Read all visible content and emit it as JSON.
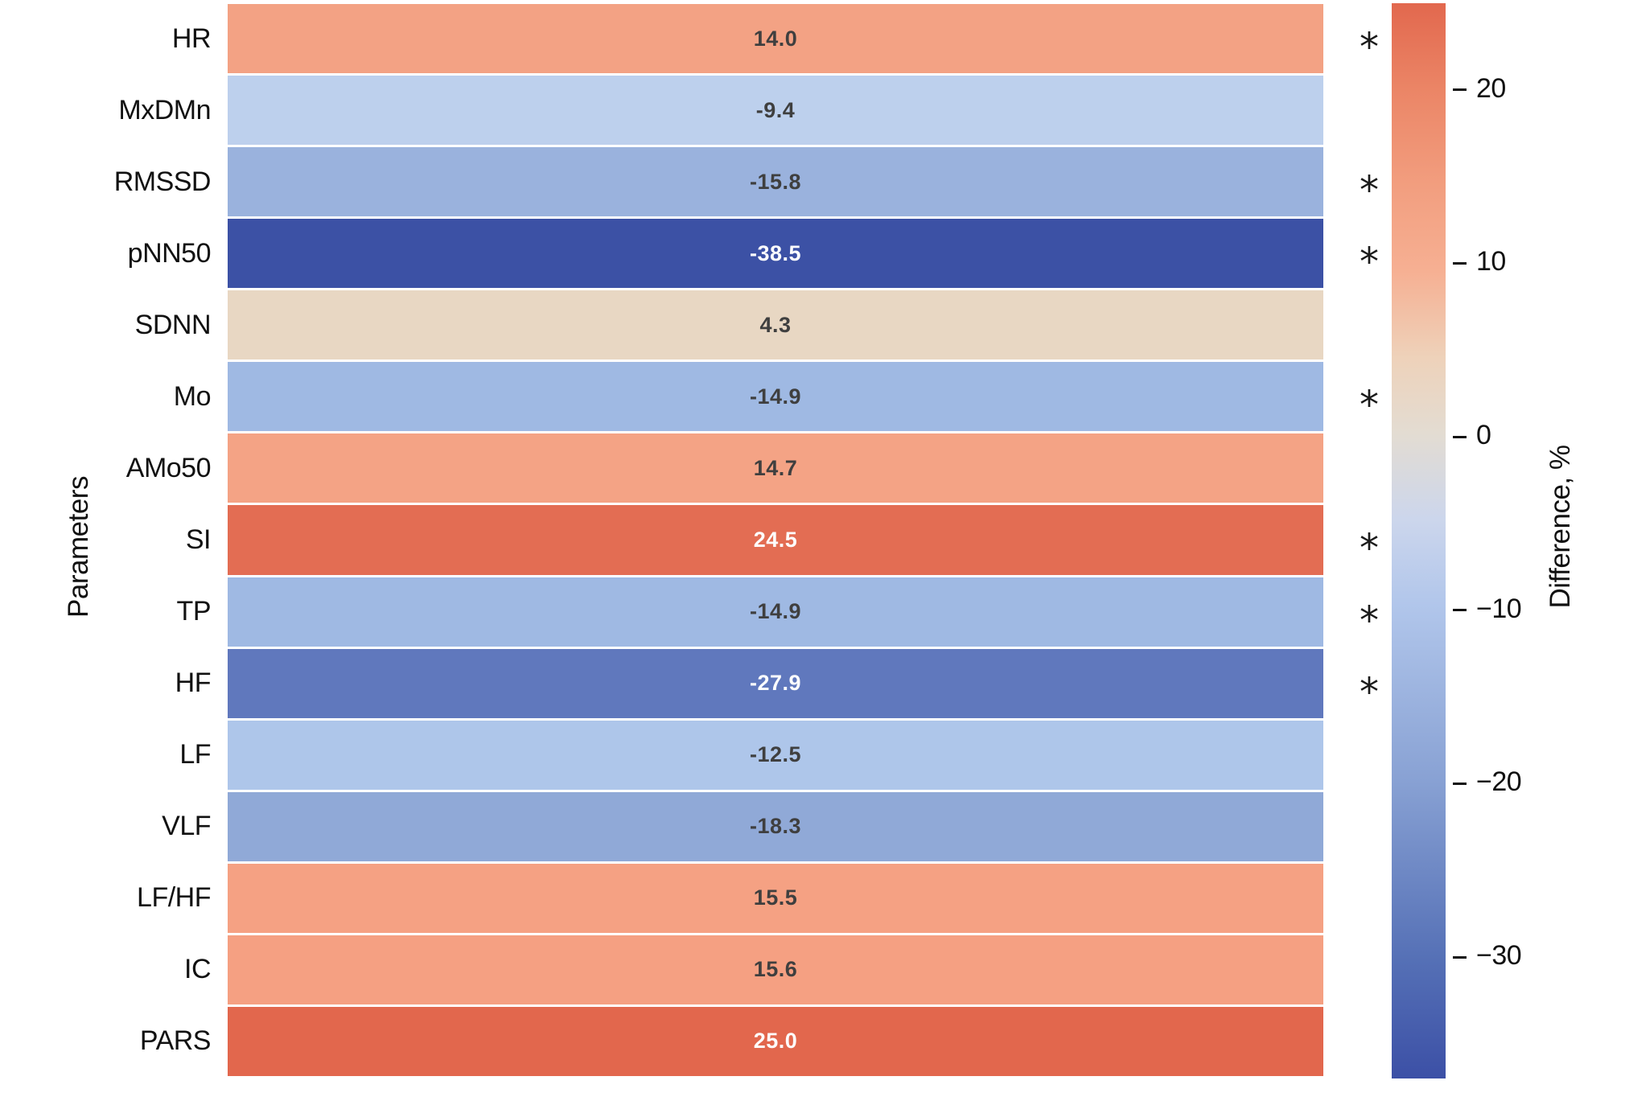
{
  "figure": {
    "ylabel": "Parameters",
    "colorbar_label": "Difference, %",
    "significance_marker": "*"
  },
  "chart_data": {
    "type": "heatmap",
    "orientation": "single-column rows",
    "ylabel": "Parameters",
    "value_unit": "%",
    "categories": [
      "HR",
      "MxDMn",
      "RMSSD",
      "pNN50",
      "SDNN",
      "Mo",
      "AMo50",
      "SI",
      "TP",
      "HF",
      "LF",
      "VLF",
      "LF/HF",
      "IC",
      "PARS"
    ],
    "rows": [
      {
        "label": "HR",
        "value": 14.0,
        "display": "14.0",
        "significant": true,
        "color": "#f3a284",
        "text_color": "dark"
      },
      {
        "label": "MxDMn",
        "value": -9.4,
        "display": "-9.4",
        "significant": false,
        "color": "#bdd0ed",
        "text_color": "dark"
      },
      {
        "label": "RMSSD",
        "value": -15.8,
        "display": "-15.8",
        "significant": true,
        "color": "#9ab2dd",
        "text_color": "dark"
      },
      {
        "label": "pNN50",
        "value": -38.5,
        "display": "-38.5",
        "significant": true,
        "color": "#3c51a5",
        "text_color": "white"
      },
      {
        "label": "SDNN",
        "value": 4.3,
        "display": "4.3",
        "significant": false,
        "color": "#e8d7c3",
        "text_color": "dark"
      },
      {
        "label": "Mo",
        "value": -14.9,
        "display": "-14.9",
        "significant": true,
        "color": "#9fb9e3",
        "text_color": "dark"
      },
      {
        "label": "AMo50",
        "value": 14.7,
        "display": "14.7",
        "significant": false,
        "color": "#f4a385",
        "text_color": "dark"
      },
      {
        "label": "SI",
        "value": 24.5,
        "display": "24.5",
        "significant": true,
        "color": "#e36d53",
        "text_color": "white"
      },
      {
        "label": "TP",
        "value": -14.9,
        "display": "-14.9",
        "significant": true,
        "color": "#9fb9e3",
        "text_color": "dark"
      },
      {
        "label": "HF",
        "value": -27.9,
        "display": "-27.9",
        "significant": true,
        "color": "#6078bd",
        "text_color": "white"
      },
      {
        "label": "LF",
        "value": -12.5,
        "display": "-12.5",
        "significant": false,
        "color": "#aec6ea",
        "text_color": "dark"
      },
      {
        "label": "VLF",
        "value": -18.3,
        "display": "-18.3",
        "significant": false,
        "color": "#90a9d7",
        "text_color": "dark"
      },
      {
        "label": "LF/HF",
        "value": 15.5,
        "display": "15.5",
        "significant": false,
        "color": "#f5a183",
        "text_color": "dark"
      },
      {
        "label": "IC",
        "value": 15.6,
        "display": "15.6",
        "significant": false,
        "color": "#f5a082",
        "text_color": "dark"
      },
      {
        "label": "PARS",
        "value": 25.0,
        "display": "25.0",
        "significant": false,
        "color": "#e2674d",
        "text_color": "white"
      }
    ],
    "colorbar": {
      "label": "Difference, %",
      "vmax": 25,
      "vmin": -37,
      "ticks": [
        {
          "value": 20,
          "label": "20"
        },
        {
          "value": 10,
          "label": "10"
        },
        {
          "value": 0,
          "label": "0"
        },
        {
          "value": -10,
          "label": "−10"
        },
        {
          "value": -20,
          "label": "−20"
        },
        {
          "value": -30,
          "label": "−30"
        }
      ],
      "gradient": [
        {
          "pos": 0,
          "color": "#e2684e"
        },
        {
          "pos": 8,
          "color": "#eb8566"
        },
        {
          "pos": 17,
          "color": "#f29e7f"
        },
        {
          "pos": 25,
          "color": "#f6b093"
        },
        {
          "pos": 33,
          "color": "#eed2ba"
        },
        {
          "pos": 40,
          "color": "#e3dcd2"
        },
        {
          "pos": 48,
          "color": "#ccd6ec"
        },
        {
          "pos": 56,
          "color": "#b1c6eb"
        },
        {
          "pos": 72,
          "color": "#89a2d4"
        },
        {
          "pos": 89,
          "color": "#5570b6"
        },
        {
          "pos": 100,
          "color": "#3c50a6"
        }
      ]
    },
    "grid": false,
    "legend_position": "none"
  }
}
